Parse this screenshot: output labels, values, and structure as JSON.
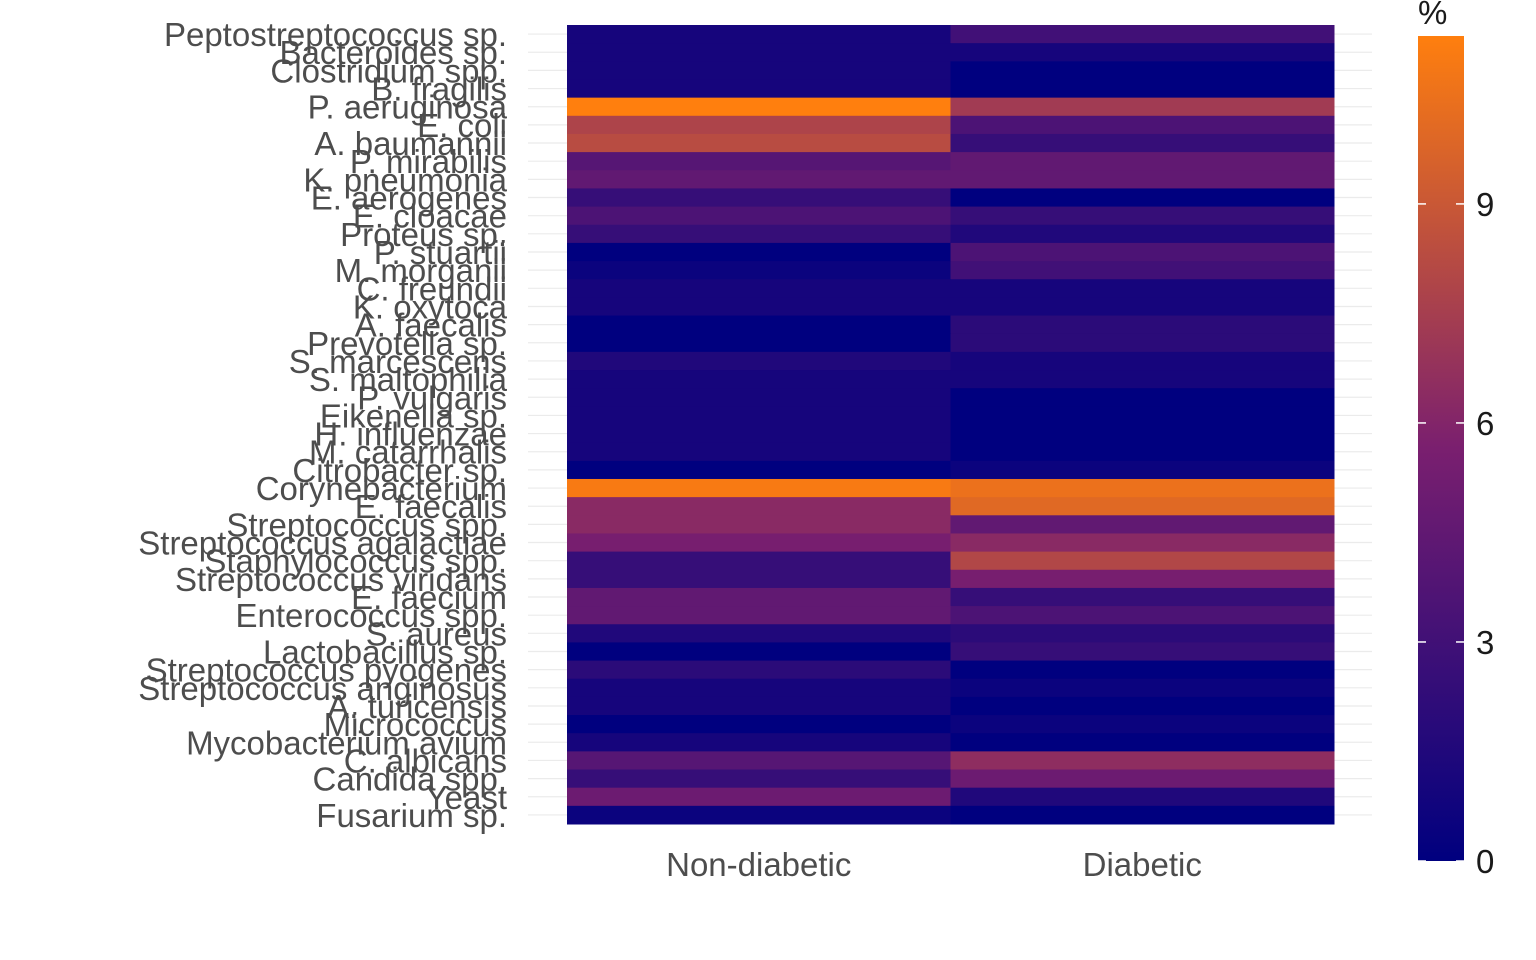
{
  "chart_data": {
    "type": "heatmap",
    "x_categories": [
      "Non-diabetic",
      "Diabetic"
    ],
    "y_categories": [
      "Peptostreptococcus sp.",
      "Bacteroides sp.",
      "Clostridium spp.",
      "B. fragilis",
      "P. aeruginosa",
      "E. coli",
      "A. baumannii",
      "P. mirabilis",
      "K. pneumonia",
      "E. aerogenes",
      "E. cloacae",
      "Proteus sp.",
      "P. stuartii",
      "M. morganii",
      "C. freundii",
      "K. oxytoca",
      "A. faecalis",
      "Prevotella sp.",
      "S. marcescens",
      "S. maltophilia",
      "P. vulgaris",
      "Eikenella sp.",
      "H. influenzae",
      "M. catarrhalis",
      "Citrobacter sp.",
      "Corynebacterium",
      "E. faecalis",
      "Streptococcus spp.",
      "Streptococcus agalactiae",
      "Staphylococcus spp.",
      "Streptococcus viridans",
      "E. faecium",
      "Enterococcus spp.",
      "S. aureus",
      "Lactobacillus sp.",
      "Streptococcus pyogenes",
      "Streptococcus anginosus",
      "A. turicensis",
      "Micrococcus",
      "Mycobacterium avium",
      "C. albicans",
      "Candida spp.",
      "Yeast",
      "Fusarium sp."
    ],
    "values": [
      [
        1.0,
        3.0
      ],
      [
        1.0,
        1.0
      ],
      [
        1.0,
        0.0
      ],
      [
        1.0,
        0.0
      ],
      [
        11.3,
        7.3
      ],
      [
        7.8,
        3.5
      ],
      [
        8.3,
        2.5
      ],
      [
        4.0,
        4.5
      ],
      [
        4.5,
        4.5
      ],
      [
        2.5,
        0.0
      ],
      [
        3.5,
        2.5
      ],
      [
        2.5,
        1.5
      ],
      [
        0.0,
        3.5
      ],
      [
        0.5,
        3.0
      ],
      [
        1.0,
        1.0
      ],
      [
        1.0,
        1.0
      ],
      [
        0.0,
        2.0
      ],
      [
        0.0,
        2.0
      ],
      [
        1.5,
        1.0
      ],
      [
        1.0,
        1.0
      ],
      [
        1.0,
        0.0
      ],
      [
        1.0,
        0.0
      ],
      [
        1.0,
        0.0
      ],
      [
        1.0,
        0.0
      ],
      [
        0.0,
        0.5
      ],
      [
        11.0,
        10.5
      ],
      [
        6.3,
        10.0
      ],
      [
        6.3,
        4.5
      ],
      [
        5.5,
        6.3
      ],
      [
        2.5,
        8.0
      ],
      [
        2.5,
        5.5
      ],
      [
        4.5,
        2.5
      ],
      [
        4.5,
        3.5
      ],
      [
        1.5,
        2.0
      ],
      [
        0.0,
        2.5
      ],
      [
        2.0,
        0.0
      ],
      [
        1.0,
        0.5
      ],
      [
        1.0,
        0.0
      ],
      [
        0.0,
        0.5
      ],
      [
        1.0,
        0.0
      ],
      [
        4.0,
        6.5
      ],
      [
        2.5,
        5.0
      ],
      [
        5.0,
        1.5
      ],
      [
        0.5,
        0.0
      ]
    ],
    "color_scale": {
      "min": 0,
      "max": 11.3,
      "low": "#00007F",
      "mid": "#7A1F6F",
      "high": "#FF7F0E"
    },
    "legend": {
      "title": "%",
      "ticks": [
        0,
        3,
        6,
        9
      ],
      "position": "right"
    }
  }
}
